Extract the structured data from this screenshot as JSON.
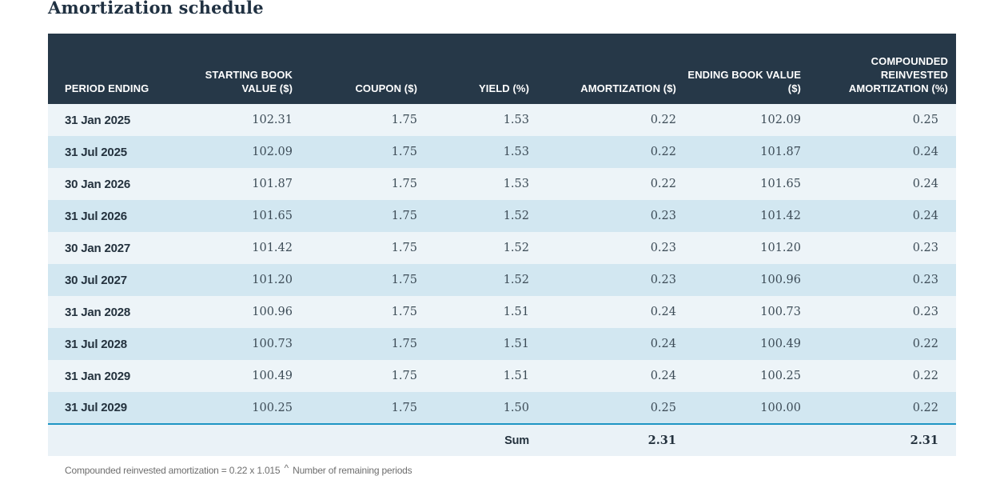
{
  "page": {
    "title": "Amortization schedule"
  },
  "table": {
    "columns": [
      "PERIOD ENDING",
      "STARTING BOOK VALUE ($)",
      "COUPON ($)",
      "YIELD (%)",
      "AMORTIZATION ($)",
      "ENDING BOOK VALUE ($)",
      "COMPOUNDED REINVESTED AMORTIZATION (%)"
    ],
    "rows": [
      [
        "31 Jan 2025",
        "102.31",
        "1.75",
        "1.53",
        "0.22",
        "102.09",
        "0.25"
      ],
      [
        "31 Jul 2025",
        "102.09",
        "1.75",
        "1.53",
        "0.22",
        "101.87",
        "0.24"
      ],
      [
        "30 Jan 2026",
        "101.87",
        "1.75",
        "1.53",
        "0.22",
        "101.65",
        "0.24"
      ],
      [
        "31 Jul 2026",
        "101.65",
        "1.75",
        "1.52",
        "0.23",
        "101.42",
        "0.24"
      ],
      [
        "30 Jan 2027",
        "101.42",
        "1.75",
        "1.52",
        "0.23",
        "101.20",
        "0.23"
      ],
      [
        "30 Jul 2027",
        "101.20",
        "1.75",
        "1.52",
        "0.23",
        "100.96",
        "0.23"
      ],
      [
        "31 Jan 2028",
        "100.96",
        "1.75",
        "1.51",
        "0.24",
        "100.73",
        "0.23"
      ],
      [
        "31 Jul 2028",
        "100.73",
        "1.75",
        "1.51",
        "0.24",
        "100.49",
        "0.22"
      ],
      [
        "31 Jan 2029",
        "100.49",
        "1.75",
        "1.51",
        "0.24",
        "100.25",
        "0.22"
      ],
      [
        "31 Jul 2029",
        "100.25",
        "1.75",
        "1.50",
        "0.25",
        "100.00",
        "0.22"
      ]
    ],
    "sum_row": {
      "label": "Sum",
      "amortization_total": "2.31",
      "compounded_total": "2.31"
    }
  },
  "footnote": {
    "prefix": "Compounded reinvested amortization = 0.22 x 1.015",
    "caret": "^",
    "suffix": "Number of remaining periods"
  },
  "colors": {
    "header_bg": "#263848",
    "row_light": "#edf4f8",
    "row_dark": "#d2e7f1",
    "sum_row_bg": "#eaf2f7",
    "divider_blue": "#1e95c4",
    "title_text": "#203142"
  }
}
